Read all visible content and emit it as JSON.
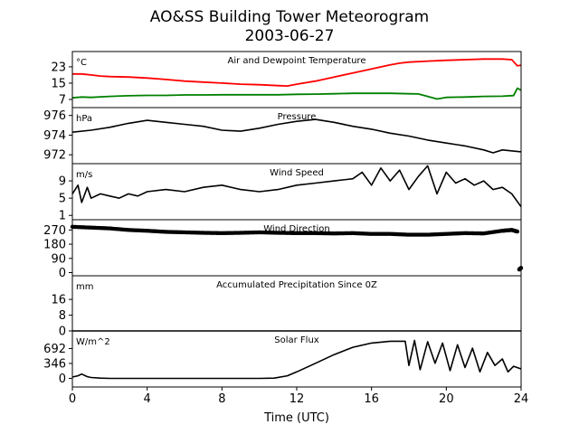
{
  "figure": {
    "title": "AO&SS Building Tower Meteorogram",
    "subtitle": "2003-06-27",
    "xlabel": "Time (UTC)"
  },
  "chart_data": [
    {
      "id": "temp",
      "type": "line",
      "title": "Air and Dewpoint Temperature",
      "unit": "°C",
      "yticks": [
        7,
        15,
        23
      ],
      "ylim": [
        3,
        30.5
      ],
      "xlim": [
        0,
        24
      ],
      "xticks": [
        0,
        4,
        8,
        12,
        16,
        20,
        24
      ],
      "series": [
        {
          "color": "#ff0000",
          "x": [
            0,
            0.5,
            1,
            1.5,
            2,
            3,
            4,
            5,
            6,
            7,
            8,
            9,
            10,
            11,
            11.5,
            12,
            13,
            14,
            15,
            16,
            17,
            17.5,
            18,
            19,
            20,
            21,
            22,
            23,
            23.5,
            23.8,
            24
          ],
          "values": [
            19.5,
            19.5,
            19,
            18.5,
            18.2,
            18,
            17.5,
            16.8,
            16,
            15.5,
            15,
            14.5,
            14.2,
            13.8,
            13.6,
            14.5,
            16,
            18,
            20,
            22,
            24,
            24.8,
            25.3,
            25.8,
            26.2,
            26.5,
            26.8,
            26.8,
            26.5,
            23.5,
            23.8
          ]
        },
        {
          "color": "#008000",
          "x": [
            0,
            0.5,
            1,
            2,
            3,
            4,
            5,
            6,
            7,
            8,
            9,
            10,
            11,
            12,
            13,
            14,
            15,
            16,
            17,
            18,
            18.5,
            19,
            19.5,
            20,
            21,
            22,
            23,
            23.6,
            23.8,
            24
          ],
          "values": [
            7.8,
            8.2,
            8,
            8.5,
            8.8,
            9,
            9,
            9.2,
            9.2,
            9.3,
            9.3,
            9.3,
            9.3,
            9.5,
            9.6,
            9.8,
            10,
            10,
            10,
            9.8,
            9.7,
            8.5,
            7.2,
            8,
            8.2,
            8.5,
            8.6,
            8.9,
            12.5,
            11.5
          ]
        }
      ]
    },
    {
      "id": "pressure",
      "type": "line",
      "title": "Pressure",
      "unit": "hPa",
      "yticks": [
        972,
        974,
        976
      ],
      "ylim": [
        971.1,
        976.8
      ],
      "xlim": [
        0,
        24
      ],
      "series": [
        {
          "color": "#000000",
          "x": [
            0,
            1,
            2,
            3,
            4,
            5,
            6,
            7,
            8,
            9,
            10,
            11,
            12,
            13,
            14,
            15,
            16,
            17,
            18,
            19,
            20,
            21,
            22,
            22.5,
            23,
            24
          ],
          "values": [
            974.3,
            974.5,
            974.8,
            975.2,
            975.5,
            975.3,
            975.1,
            974.9,
            974.5,
            974.4,
            974.7,
            975.1,
            975.4,
            975.6,
            975.3,
            974.9,
            974.6,
            974.2,
            973.9,
            973.5,
            973.2,
            972.9,
            972.5,
            972.2,
            972.5,
            972.3
          ]
        }
      ]
    },
    {
      "id": "wind_speed",
      "type": "line",
      "title": "Wind Speed",
      "unit": "m/s",
      "yticks": [
        1,
        5,
        9
      ],
      "ylim": [
        0,
        13
      ],
      "xlim": [
        0,
        24
      ],
      "series": [
        {
          "color": "#000000",
          "x": [
            0,
            0.3,
            0.5,
            0.8,
            1,
            1.5,
            2,
            2.5,
            3,
            3.5,
            4,
            5,
            6,
            7,
            8,
            9,
            10,
            11,
            12,
            13,
            14,
            15,
            15.5,
            16,
            16.5,
            17,
            17.5,
            18,
            18.5,
            19,
            19.5,
            20,
            20.5,
            21,
            21.5,
            22,
            22.5,
            23,
            23.5,
            24
          ],
          "values": [
            6,
            8,
            4,
            7.5,
            5,
            6,
            5.5,
            5,
            6,
            5.5,
            6.5,
            7,
            6.5,
            7.5,
            8,
            7,
            6.5,
            7,
            8,
            8.5,
            9,
            9.5,
            11,
            8,
            12,
            9,
            11.5,
            7,
            10,
            12.5,
            6,
            11,
            8.5,
            9.5,
            8,
            9,
            7,
            7.5,
            6,
            3
          ]
        }
      ]
    },
    {
      "id": "wind_dir",
      "type": "scatter",
      "title": "Wind Direction",
      "unit": "",
      "yticks": [
        0,
        90,
        180,
        270
      ],
      "ylim": [
        -20,
        335
      ],
      "xlim": [
        0,
        24
      ],
      "series": [
        {
          "color": "#000000",
          "x": [
            0,
            1,
            2,
            3,
            4,
            5,
            6,
            7,
            8,
            9,
            10,
            11,
            12,
            13,
            14,
            15,
            16,
            17,
            18,
            19,
            20,
            21,
            22,
            23,
            23.5,
            23.8,
            23.9,
            24
          ],
          "values": [
            290,
            285,
            280,
            270,
            265,
            258,
            255,
            252,
            250,
            252,
            255,
            252,
            250,
            250,
            248,
            250,
            245,
            245,
            240,
            240,
            245,
            250,
            248,
            265,
            270,
            260,
            20,
            30
          ]
        }
      ]
    },
    {
      "id": "precip",
      "type": "line",
      "title": "Accumulated Precipitation Since 0Z",
      "unit": "mm",
      "yticks": [
        0,
        8,
        16
      ],
      "ylim": [
        0,
        28
      ],
      "xlim": [
        0,
        24
      ],
      "series": [
        {
          "color": "#000000",
          "x": [
            0,
            24
          ],
          "values": [
            0,
            0
          ]
        }
      ]
    },
    {
      "id": "solar",
      "type": "line",
      "title": "Solar Flux",
      "unit": "W/m^2",
      "yticks": [
        0,
        346,
        692
      ],
      "ylim": [
        -200,
        1100
      ],
      "xlim": [
        0,
        24
      ],
      "series": [
        {
          "color": "#000000",
          "x": [
            0,
            0.3,
            0.5,
            0.8,
            1,
            1.5,
            2,
            4,
            6,
            8,
            10,
            10.8,
            11.5,
            12,
            13,
            14,
            15,
            16,
            17,
            17.8,
            18,
            18.3,
            18.6,
            19,
            19.4,
            19.8,
            20.2,
            20.6,
            21,
            21.4,
            21.8,
            22.2,
            22.6,
            23,
            23.3,
            23.6,
            24
          ],
          "values": [
            30,
            60,
            100,
            40,
            20,
            5,
            0,
            0,
            0,
            0,
            0,
            5,
            60,
            150,
            350,
            550,
            720,
            820,
            860,
            860,
            300,
            880,
            200,
            850,
            350,
            820,
            180,
            780,
            250,
            700,
            150,
            600,
            300,
            450,
            150,
            280,
            220
          ]
        }
      ]
    }
  ]
}
